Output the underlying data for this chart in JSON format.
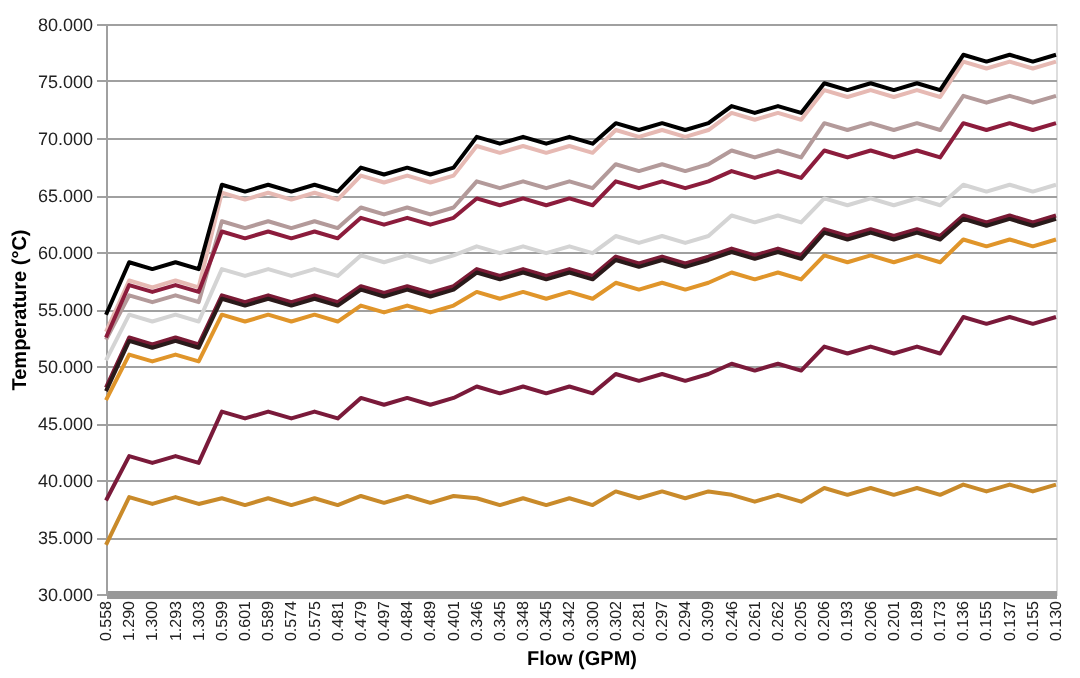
{
  "chart_data": {
    "type": "line",
    "xlabel": "Flow (GPM)",
    "ylabel": "Temperature (°C)",
    "categories": [
      "0.558",
      "1.290",
      "1.300",
      "1.293",
      "1.303",
      "0.599",
      "0.601",
      "0.589",
      "0.574",
      "0.575",
      "0.481",
      "0.479",
      "0.497",
      "0.484",
      "0.489",
      "0.401",
      "0.346",
      "0.345",
      "0.348",
      "0.345",
      "0.342",
      "0.300",
      "0.302",
      "0.281",
      "0.297",
      "0.294",
      "0.309",
      "0.246",
      "0.261",
      "0.262",
      "0.205",
      "0.206",
      "0.193",
      "0.206",
      "0.201",
      "0.189",
      "0.173",
      "0.136",
      "0.155",
      "0.137",
      "0.155",
      "0.130"
    ],
    "ylim": [
      30,
      80
    ],
    "yticks": [
      {
        "value": 30,
        "label": "30.000"
      },
      {
        "value": 35,
        "label": "35.000"
      },
      {
        "value": 40,
        "label": "40.000"
      },
      {
        "value": 45,
        "label": "45.000"
      },
      {
        "value": 50,
        "label": "50.000"
      },
      {
        "value": 55,
        "label": "55.000"
      },
      {
        "value": 60,
        "label": "60.000"
      },
      {
        "value": 65,
        "label": "65.000"
      },
      {
        "value": 70,
        "label": "70.000"
      },
      {
        "value": 75,
        "label": "75.000"
      },
      {
        "value": 80,
        "label": "80.000"
      }
    ],
    "grid": "y",
    "line_style": "solid",
    "series": [
      {
        "color": "#c98a2a",
        "values": [
          34.3,
          38.5,
          37.9,
          38.5,
          37.9,
          38.4,
          37.8,
          38.4,
          37.8,
          38.4,
          37.8,
          38.6,
          38.0,
          38.6,
          38.0,
          38.6,
          38.4,
          37.8,
          38.4,
          37.8,
          38.4,
          37.8,
          39.0,
          38.4,
          39.0,
          38.4,
          39.0,
          38.7,
          38.1,
          38.7,
          38.1,
          39.3,
          38.7,
          39.3,
          38.7,
          39.3,
          38.7,
          39.6,
          39.0,
          39.6,
          39.0,
          39.6
        ]
      },
      {
        "color": "#7a1a3a",
        "values": [
          38.2,
          42.1,
          41.5,
          42.1,
          41.5,
          46.0,
          45.4,
          46.0,
          45.4,
          46.0,
          45.4,
          47.2,
          46.6,
          47.2,
          46.6,
          47.2,
          48.2,
          47.6,
          48.2,
          47.6,
          48.2,
          47.6,
          49.3,
          48.7,
          49.3,
          48.7,
          49.3,
          50.2,
          49.6,
          50.2,
          49.6,
          51.7,
          51.1,
          51.7,
          51.1,
          51.7,
          51.1,
          54.3,
          53.7,
          54.3,
          53.7,
          54.3
        ]
      },
      {
        "color": "#e0952a",
        "values": [
          47.0,
          51.0,
          50.4,
          51.0,
          50.4,
          54.5,
          53.9,
          54.5,
          53.9,
          54.5,
          53.9,
          55.3,
          54.7,
          55.3,
          54.7,
          55.3,
          56.5,
          55.9,
          56.5,
          55.9,
          56.5,
          55.9,
          57.3,
          56.7,
          57.3,
          56.7,
          57.3,
          58.2,
          57.6,
          58.2,
          57.6,
          59.7,
          59.1,
          59.7,
          59.1,
          59.7,
          59.1,
          61.1,
          60.5,
          61.1,
          60.5,
          61.1
        ]
      },
      {
        "color": "#d4d4d4",
        "values": [
          50.5,
          54.5,
          53.9,
          54.5,
          53.9,
          58.5,
          57.9,
          58.5,
          57.9,
          58.5,
          57.9,
          59.7,
          59.1,
          59.7,
          59.1,
          59.7,
          60.5,
          59.9,
          60.5,
          59.9,
          60.5,
          59.9,
          61.4,
          60.8,
          61.4,
          60.8,
          61.4,
          63.2,
          62.6,
          63.2,
          62.6,
          64.7,
          64.1,
          64.7,
          64.1,
          64.7,
          64.1,
          65.9,
          65.3,
          65.9,
          65.3,
          65.9
        ]
      },
      {
        "color": "#b39a9a",
        "values": [
          52.3,
          56.2,
          55.6,
          56.2,
          55.6,
          62.7,
          62.1,
          62.7,
          62.1,
          62.7,
          62.1,
          63.9,
          63.3,
          63.9,
          63.3,
          63.9,
          66.2,
          65.6,
          66.2,
          65.6,
          66.2,
          65.6,
          67.7,
          67.1,
          67.7,
          67.1,
          67.7,
          68.9,
          68.3,
          68.9,
          68.3,
          71.3,
          70.7,
          71.3,
          70.7,
          71.3,
          70.7,
          73.7,
          73.1,
          73.7,
          73.1,
          73.7
        ]
      },
      {
        "color": "#e6b9b3",
        "values": [
          53.0,
          57.5,
          56.9,
          57.5,
          56.9,
          65.2,
          64.6,
          65.2,
          64.6,
          65.2,
          64.6,
          66.7,
          66.1,
          66.7,
          66.1,
          66.7,
          69.3,
          68.7,
          69.3,
          68.7,
          69.3,
          68.7,
          70.7,
          70.1,
          70.7,
          70.1,
          70.7,
          72.2,
          71.6,
          72.2,
          71.6,
          74.2,
          73.6,
          74.2,
          73.6,
          74.2,
          73.6,
          76.7,
          76.1,
          76.7,
          76.1,
          76.7
        ]
      },
      {
        "color": "#7a1a35",
        "values": [
          48.1,
          52.5,
          51.9,
          52.5,
          51.9,
          56.2,
          55.6,
          56.2,
          55.6,
          56.2,
          55.6,
          57.0,
          56.4,
          57.0,
          56.4,
          57.0,
          58.5,
          57.9,
          58.5,
          57.9,
          58.5,
          57.9,
          59.6,
          59.0,
          59.6,
          59.0,
          59.6,
          60.3,
          59.7,
          60.3,
          59.7,
          62.0,
          61.4,
          62.0,
          61.4,
          62.0,
          61.4,
          63.2,
          62.6,
          63.2,
          62.6,
          63.2
        ]
      },
      {
        "color": "#2a1a1a",
        "values": [
          47.8,
          52.2,
          51.6,
          52.2,
          51.6,
          55.9,
          55.3,
          55.9,
          55.3,
          55.9,
          55.3,
          56.7,
          56.1,
          56.7,
          56.1,
          56.7,
          58.2,
          57.6,
          58.2,
          57.6,
          58.2,
          57.6,
          59.3,
          58.7,
          59.3,
          58.7,
          59.3,
          60.0,
          59.4,
          60.0,
          59.4,
          61.7,
          61.1,
          61.7,
          61.1,
          61.7,
          61.1,
          62.9,
          62.3,
          62.9,
          62.3,
          62.9
        ]
      },
      {
        "color": "#8c1c3c",
        "values": [
          52.5,
          57.1,
          56.5,
          57.1,
          56.5,
          61.8,
          61.2,
          61.8,
          61.2,
          61.8,
          61.2,
          63.0,
          62.4,
          63.0,
          62.4,
          63.0,
          64.7,
          64.1,
          64.7,
          64.1,
          64.7,
          64.1,
          66.2,
          65.6,
          66.2,
          65.6,
          66.2,
          67.1,
          66.5,
          67.1,
          66.5,
          68.9,
          68.3,
          68.9,
          68.3,
          68.9,
          68.3,
          71.3,
          70.7,
          71.3,
          70.7,
          71.3
        ]
      },
      {
        "color": "#000000",
        "values": [
          54.5,
          59.1,
          58.5,
          59.1,
          58.5,
          65.9,
          65.3,
          65.9,
          65.3,
          65.9,
          65.3,
          67.4,
          66.8,
          67.4,
          66.8,
          67.4,
          70.1,
          69.5,
          70.1,
          69.5,
          70.1,
          69.5,
          71.3,
          70.7,
          71.3,
          70.7,
          71.3,
          72.8,
          72.2,
          72.8,
          72.2,
          74.8,
          74.2,
          74.8,
          74.2,
          74.8,
          74.2,
          77.3,
          76.7,
          77.3,
          76.7,
          77.3
        ]
      }
    ]
  }
}
